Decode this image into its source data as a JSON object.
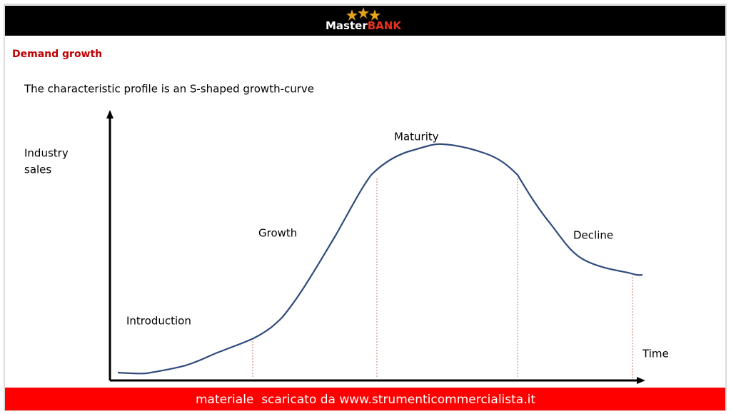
{
  "header": {
    "logo": [
      "Master",
      "BANK"
    ]
  },
  "slide": {
    "title": "Demand growth",
    "subtitle": "The characteristic profile is an S-shaped growth-curve"
  },
  "diagram": {
    "y_axis_label": [
      "Industry",
      "sales"
    ],
    "x_axis_label": "Time",
    "stages": [
      "Introduction",
      "Growth",
      "Maturity",
      "Decline"
    ]
  },
  "footer": {
    "text": "materiale  scaricato da www.strumenticommercialista.it"
  }
}
